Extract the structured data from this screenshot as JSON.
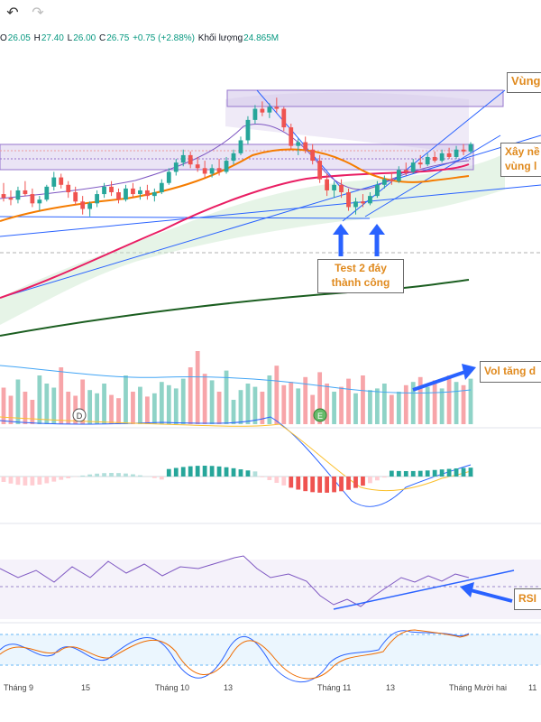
{
  "toolbar": {
    "undo_label": "↶",
    "redo_label": "↷"
  },
  "ohlc": {
    "o_label": "O",
    "o_value": "26.05",
    "h_label": "H",
    "h_value": "27.40",
    "l_label": "L",
    "l_value": "26.00",
    "c_label": "C",
    "c_value": "26.75",
    "change": "+0.75 (+2.88%)",
    "volume_label": "Khối lượng",
    "volume_value": "24.865M"
  },
  "annotations": {
    "zone": "Vùng",
    "accumulate_line1": "Xây nề",
    "accumulate_line2": "vùng l",
    "test_line1": "Test 2 đáy",
    "test_line2": "thành công",
    "vol": "Vol tăng d",
    "rsi": "RSI"
  },
  "markers": {
    "dividend": "D",
    "earnings": "E"
  },
  "colors": {
    "up": "#26a69a",
    "down": "#ef5350",
    "up_volume": "#8fd3c7",
    "down_volume": "#f7a5a9",
    "ma_fast": "#e91e63",
    "ma_mid": "#f57c00",
    "ma_slow": "#1b5e20",
    "trendline": "#2962ff",
    "zone_fill": "#d1c4e9",
    "annotation_text": "#e08a1e"
  },
  "chart_data": {
    "type": "candlestick",
    "x_tick_labels": [
      "Tháng 9",
      "15",
      "Tháng 10",
      "13",
      "Tháng 11",
      "13",
      "Tháng Mười hai",
      "11"
    ],
    "candles_note_scale": "relative price levels",
    "candles": [
      [
        22.2,
        22.8,
        21.8,
        22.0
      ],
      [
        22.0,
        22.4,
        21.6,
        21.9
      ],
      [
        21.9,
        22.6,
        21.7,
        22.4
      ],
      [
        22.4,
        22.9,
        22.1,
        22.2
      ],
      [
        22.2,
        22.5,
        21.5,
        21.7
      ],
      [
        21.7,
        22.1,
        21.3,
        21.9
      ],
      [
        21.9,
        22.7,
        21.8,
        22.6
      ],
      [
        22.6,
        23.4,
        22.4,
        23.1
      ],
      [
        23.1,
        23.3,
        22.5,
        22.7
      ],
      [
        22.7,
        22.9,
        22.0,
        22.3
      ],
      [
        22.3,
        22.6,
        21.6,
        21.8
      ],
      [
        21.8,
        22.1,
        21.1,
        21.4
      ],
      [
        21.4,
        21.8,
        21.0,
        21.7
      ],
      [
        21.7,
        22.4,
        21.5,
        22.2
      ],
      [
        22.2,
        22.8,
        22.0,
        22.6
      ],
      [
        22.6,
        22.9,
        22.1,
        22.3
      ],
      [
        22.3,
        22.5,
        21.7,
        21.9
      ],
      [
        21.9,
        22.7,
        21.8,
        22.5
      ],
      [
        22.5,
        22.8,
        22.0,
        22.2
      ],
      [
        22.2,
        22.6,
        21.9,
        22.4
      ],
      [
        22.4,
        22.7,
        21.9,
        22.1
      ],
      [
        22.1,
        22.5,
        21.8,
        22.3
      ],
      [
        22.3,
        23.0,
        22.2,
        22.8
      ],
      [
        22.8,
        23.6,
        22.7,
        23.4
      ],
      [
        23.4,
        24.1,
        23.2,
        23.9
      ],
      [
        23.9,
        24.6,
        23.7,
        24.3
      ],
      [
        24.3,
        24.5,
        23.6,
        23.8
      ],
      [
        23.8,
        24.2,
        23.4,
        23.6
      ],
      [
        23.6,
        24.0,
        23.1,
        23.3
      ],
      [
        23.3,
        23.8,
        23.1,
        23.6
      ],
      [
        23.6,
        24.1,
        23.2,
        23.4
      ],
      [
        23.4,
        24.2,
        23.3,
        24.0
      ],
      [
        24.0,
        24.6,
        23.8,
        24.4
      ],
      [
        24.4,
        25.3,
        24.3,
        25.1
      ],
      [
        25.1,
        26.4,
        24.9,
        26.2
      ],
      [
        26.2,
        27.0,
        26.0,
        26.8
      ],
      [
        26.8,
        27.2,
        26.4,
        26.6
      ],
      [
        26.6,
        27.1,
        26.3,
        26.9
      ],
      [
        26.9,
        27.4,
        26.6,
        26.8
      ],
      [
        26.8,
        26.9,
        25.6,
        25.8
      ],
      [
        25.8,
        26.0,
        24.6,
        24.8
      ],
      [
        24.8,
        25.2,
        24.3,
        25.0
      ],
      [
        25.0,
        25.3,
        24.4,
        24.6
      ],
      [
        24.6,
        24.9,
        23.8,
        24.0
      ],
      [
        24.0,
        24.3,
        22.8,
        23.0
      ],
      [
        23.0,
        23.3,
        22.1,
        22.4
      ],
      [
        22.4,
        22.9,
        22.0,
        22.7
      ],
      [
        22.7,
        23.0,
        22.0,
        22.3
      ],
      [
        22.3,
        22.5,
        21.3,
        21.5
      ],
      [
        21.5,
        22.0,
        21.1,
        21.8
      ],
      [
        21.8,
        22.2,
        21.5,
        21.7
      ],
      [
        21.7,
        22.3,
        21.6,
        22.1
      ],
      [
        22.1,
        22.9,
        22.0,
        22.7
      ],
      [
        22.7,
        23.2,
        22.5,
        23.0
      ],
      [
        23.0,
        23.4,
        22.7,
        22.9
      ],
      [
        22.9,
        23.7,
        22.8,
        23.5
      ],
      [
        23.5,
        23.9,
        23.2,
        23.4
      ],
      [
        23.4,
        24.1,
        23.3,
        23.9
      ],
      [
        23.9,
        24.3,
        23.6,
        23.8
      ],
      [
        23.8,
        24.4,
        23.7,
        24.2
      ],
      [
        24.2,
        24.5,
        23.9,
        24.0
      ],
      [
        24.0,
        24.6,
        23.9,
        24.4
      ],
      [
        24.4,
        24.7,
        24.1,
        24.2
      ],
      [
        24.2,
        24.8,
        24.1,
        24.6
      ],
      [
        24.6,
        24.9,
        24.3,
        24.5
      ],
      [
        24.5,
        25.0,
        24.4,
        24.9
      ]
    ],
    "series_volume_ratio": [
      0.45,
      0.35,
      0.55,
      0.4,
      0.3,
      0.6,
      0.5,
      0.45,
      0.7,
      0.4,
      0.35,
      0.55,
      0.42,
      0.38,
      0.5,
      0.36,
      0.32,
      0.6,
      0.4,
      0.46,
      0.34,
      0.38,
      0.52,
      0.48,
      0.44,
      0.56,
      0.7,
      0.9,
      0.62,
      0.54,
      0.4,
      0.66,
      0.3,
      0.42,
      0.5,
      0.46,
      0.4,
      0.6,
      0.72,
      0.48,
      0.52,
      0.44,
      0.58,
      0.36,
      0.64,
      0.5,
      0.4,
      0.46,
      0.56,
      0.38,
      0.6,
      0.42,
      0.44,
      0.5,
      0.36,
      0.4,
      0.48,
      0.52,
      0.58,
      0.46,
      0.54,
      0.44,
      0.6,
      0.52,
      0.48,
      0.56
    ]
  }
}
